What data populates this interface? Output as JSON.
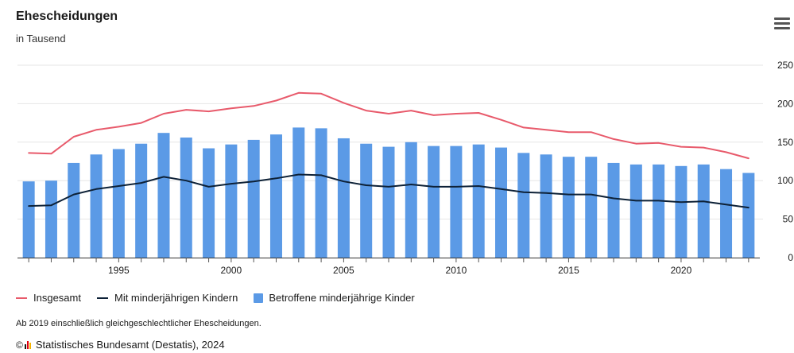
{
  "header": {
    "title": "Ehescheidungen",
    "subtitle": "in Tausend"
  },
  "menu": {
    "icon": "hamburger-menu-icon"
  },
  "legend": {
    "items": [
      {
        "label": "Insgesamt",
        "color": "#e85a6b",
        "symbol": "line"
      },
      {
        "label": "Mit minderjährigen Kindern",
        "color": "#0d2137",
        "symbol": "line"
      },
      {
        "label": "Betroffene minderjährige Kinder",
        "color": "#5b9ae6",
        "symbol": "box"
      }
    ]
  },
  "footnote": "Ab 2019 einschließlich gleichgeschlechtlicher Ehescheidungen.",
  "source": {
    "copyright": "©",
    "text": "Statistisches Bundesamt (Destatis), 2024",
    "logo": "destatis-logo-icon"
  },
  "chart_data": {
    "type": "bar",
    "title": "Ehescheidungen",
    "subtitle": "in Tausend",
    "x": [
      1991,
      1992,
      1993,
      1994,
      1995,
      1996,
      1997,
      1998,
      1999,
      2000,
      2001,
      2002,
      2003,
      2004,
      2005,
      2006,
      2007,
      2008,
      2009,
      2010,
      2011,
      2012,
      2013,
      2014,
      2015,
      2016,
      2017,
      2018,
      2019,
      2020,
      2021,
      2022,
      2023
    ],
    "x_ticks": [
      "1995",
      "2000",
      "2005",
      "2010",
      "2015",
      "2020"
    ],
    "y_ticks": [
      "0",
      "50",
      "100",
      "150",
      "200",
      "250"
    ],
    "ylim": [
      0,
      250
    ],
    "y_axis_side": "right",
    "grid": true,
    "legend_position": "bottom-left",
    "series": [
      {
        "name": "Betroffene minderjährige Kinder",
        "type": "bar",
        "color": "#5b9ae6",
        "values": [
          99,
          100,
          123,
          134,
          141,
          148,
          162,
          156,
          142,
          147,
          153,
          160,
          169,
          168,
          155,
          148,
          144,
          150,
          145,
          145,
          147,
          143,
          136,
          134,
          131,
          131,
          123,
          121,
          121,
          119,
          121,
          115,
          110
        ]
      },
      {
        "name": "Insgesamt",
        "type": "line",
        "color": "#e85a6b",
        "values": [
          136,
          135,
          157,
          166,
          170,
          175,
          187,
          192,
          190,
          194,
          197,
          204,
          214,
          213,
          201,
          191,
          187,
          191,
          185,
          187,
          188,
          179,
          169,
          166,
          163,
          163,
          154,
          148,
          149,
          144,
          143,
          137,
          129
        ]
      },
      {
        "name": "Mit minderjährigen Kindern",
        "type": "line",
        "color": "#0d2137",
        "values": [
          67,
          68,
          82,
          89,
          93,
          97,
          105,
          100,
          92,
          96,
          99,
          103,
          108,
          107,
          99,
          94,
          92,
          95,
          92,
          92,
          93,
          89,
          85,
          84,
          82,
          82,
          77,
          74,
          74,
          72,
          73,
          69,
          65
        ]
      }
    ]
  }
}
